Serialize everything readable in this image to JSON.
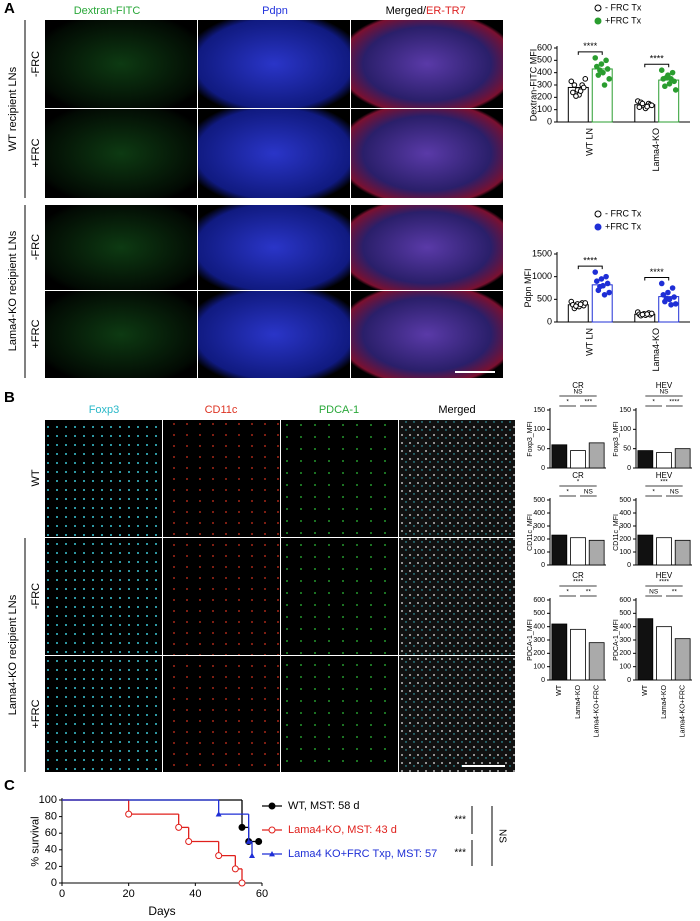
{
  "panel_a": {
    "label": "A",
    "columns": [
      "Dextran-FITC",
      "Pdpn",
      "Merged/",
      "ER-TR7"
    ],
    "rows": [
      "-FRC",
      "+FRC",
      "-FRC",
      "+FRC"
    ],
    "groups": [
      "WT recipient LNs",
      "Lama4-KO recipient LNs"
    ]
  },
  "panel_b": {
    "label": "B",
    "columns": [
      "Foxp3",
      "CD11c",
      "PDCA-1",
      "Merged"
    ],
    "rows": [
      "WT",
      "-FRC",
      "+FRC"
    ],
    "groups": [
      "Lama4-KO recipient LNs"
    ]
  },
  "panel_c": {
    "label": "C",
    "significance": [
      "***",
      "***",
      "NS"
    ]
  },
  "chart_data": [
    {
      "type": "grouped-bar",
      "ylabel": "Dextran-FITC MFI",
      "categories": [
        "WT LN",
        "Lama4-KO"
      ],
      "ylim": [
        0,
        600
      ],
      "yticks": [
        0,
        100,
        200,
        300,
        400,
        500,
        600
      ],
      "significance": [
        "****",
        "****"
      ],
      "series": [
        {
          "name": "- FRC Tx",
          "color": "#000000",
          "marker": "open",
          "values": [
            280,
            140
          ],
          "points": [
            [
              330,
              300,
              260,
              240,
              280,
              220,
              300,
              350,
              250,
              210
            ],
            [
              170,
              150,
              130,
              120,
              140,
              110,
              160,
              135,
              125,
              150
            ]
          ]
        },
        {
          "name": "+FRC Tx",
          "color": "#2a9d2f",
          "marker": "filled",
          "values": [
            430,
            340
          ],
          "points": [
            [
              520,
              500,
              470,
              450,
              430,
              400,
              380,
              350,
              300,
              420
            ],
            [
              420,
              400,
              380,
              350,
              330,
              310,
              290,
              260,
              350,
              360
            ]
          ]
        }
      ]
    },
    {
      "type": "grouped-bar",
      "ylabel": "Pdpn MFI",
      "categories": [
        "WT LN",
        "Lama4-KO"
      ],
      "ylim": [
        0,
        1500
      ],
      "yticks": [
        0,
        500,
        1000,
        1500
      ],
      "significance": [
        "****",
        "****"
      ],
      "series": [
        {
          "name": "- FRC Tx",
          "color": "#000000",
          "marker": "open",
          "values": [
            380,
            170
          ],
          "points": [
            [
              450,
              420,
              400,
              380,
              360,
              340,
              300,
              420,
              390,
              350
            ],
            [
              220,
              200,
              180,
              170,
              160,
              150,
              140,
              190,
              175,
              165
            ]
          ]
        },
        {
          "name": "+FRC Tx",
          "color": "#1f2fd6",
          "marker": "filled",
          "values": [
            820,
            560
          ],
          "points": [
            [
              1100,
              1000,
              950,
              900,
              850,
              800,
              700,
              650,
              600,
              780
            ],
            [
              850,
              750,
              650,
              600,
              550,
              500,
              450,
              400,
              380,
              520
            ]
          ]
        }
      ]
    },
    {
      "type": "bar",
      "title": "CR",
      "ylabel": "Foxp3_MFI",
      "ylim": [
        0,
        150
      ],
      "yticks": [
        0,
        50,
        100,
        150
      ],
      "values": [
        60,
        45,
        65
      ],
      "colors": [
        "#111111",
        "#ffffff",
        "#aaaaaa"
      ],
      "significance": [
        "NS",
        "*",
        "***"
      ]
    },
    {
      "type": "bar",
      "title": "HEV",
      "ylabel": "Foxp3_MFI",
      "ylim": [
        0,
        150
      ],
      "yticks": [
        0,
        50,
        100,
        150
      ],
      "values": [
        45,
        40,
        50
      ],
      "colors": [
        "#111111",
        "#ffffff",
        "#aaaaaa"
      ],
      "significance": [
        "NS",
        "*",
        "****"
      ]
    },
    {
      "type": "bar",
      "title": "CR",
      "ylabel": "CD11c_MFI",
      "ylim": [
        0,
        500
      ],
      "yticks": [
        0,
        100,
        200,
        300,
        400,
        500
      ],
      "values": [
        230,
        210,
        190
      ],
      "colors": [
        "#111111",
        "#ffffff",
        "#aaaaaa"
      ],
      "significance": [
        "*",
        "*",
        "NS"
      ]
    },
    {
      "type": "bar",
      "title": "HEV",
      "ylabel": "CD11c_MFI",
      "ylim": [
        0,
        500
      ],
      "yticks": [
        0,
        100,
        200,
        300,
        400,
        500
      ],
      "values": [
        230,
        210,
        190
      ],
      "colors": [
        "#111111",
        "#ffffff",
        "#aaaaaa"
      ],
      "significance": [
        "***",
        "*",
        "NS"
      ]
    },
    {
      "type": "bar",
      "title": "CR",
      "ylabel": "PDCA-1_MFI",
      "ylim": [
        0,
        600
      ],
      "yticks": [
        0,
        100,
        200,
        300,
        400,
        500,
        600
      ],
      "categories": [
        "WT",
        "Lama4-KO",
        "Lama4-KO+FRC"
      ],
      "values": [
        420,
        380,
        280
      ],
      "colors": [
        "#111111",
        "#ffffff",
        "#aaaaaa"
      ],
      "significance": [
        "****",
        "*",
        "**"
      ]
    },
    {
      "type": "bar",
      "title": "HEV",
      "ylabel": "PDCA-1_MFI",
      "ylim": [
        0,
        600
      ],
      "yticks": [
        0,
        100,
        200,
        300,
        400,
        500,
        600
      ],
      "categories": [
        "WT",
        "Lama4-KO",
        "Lama4-KO+FRC"
      ],
      "values": [
        460,
        400,
        310
      ],
      "colors": [
        "#111111",
        "#ffffff",
        "#aaaaaa"
      ],
      "significance": [
        "****",
        "NS",
        "**"
      ]
    },
    {
      "type": "survival",
      "xlabel": "Days",
      "ylabel": "% survival",
      "xlim": [
        0,
        60
      ],
      "xticks": [
        0,
        20,
        40,
        60
      ],
      "ylim": [
        0,
        100
      ],
      "yticks": [
        0,
        20,
        40,
        60,
        80,
        100
      ],
      "series": [
        {
          "name": "WT, MST: 58 d",
          "color": "#000000",
          "marker": "circle",
          "x": [
            0,
            54,
            56,
            59
          ],
          "values": [
            100,
            67,
            50,
            50
          ]
        },
        {
          "name": "Lama4-KO, MST: 43 d",
          "color": "#e0201c",
          "marker": "open-circle",
          "x": [
            0,
            20,
            35,
            38,
            47,
            52,
            54
          ],
          "values": [
            100,
            83,
            67,
            50,
            33,
            17,
            0
          ]
        },
        {
          "name": "Lama4 KO+FRC Txp, MST: 57",
          "color": "#1f2fd6",
          "marker": "triangle",
          "x": [
            0,
            47,
            56,
            57
          ],
          "values": [
            100,
            83,
            50,
            33
          ]
        }
      ]
    }
  ]
}
